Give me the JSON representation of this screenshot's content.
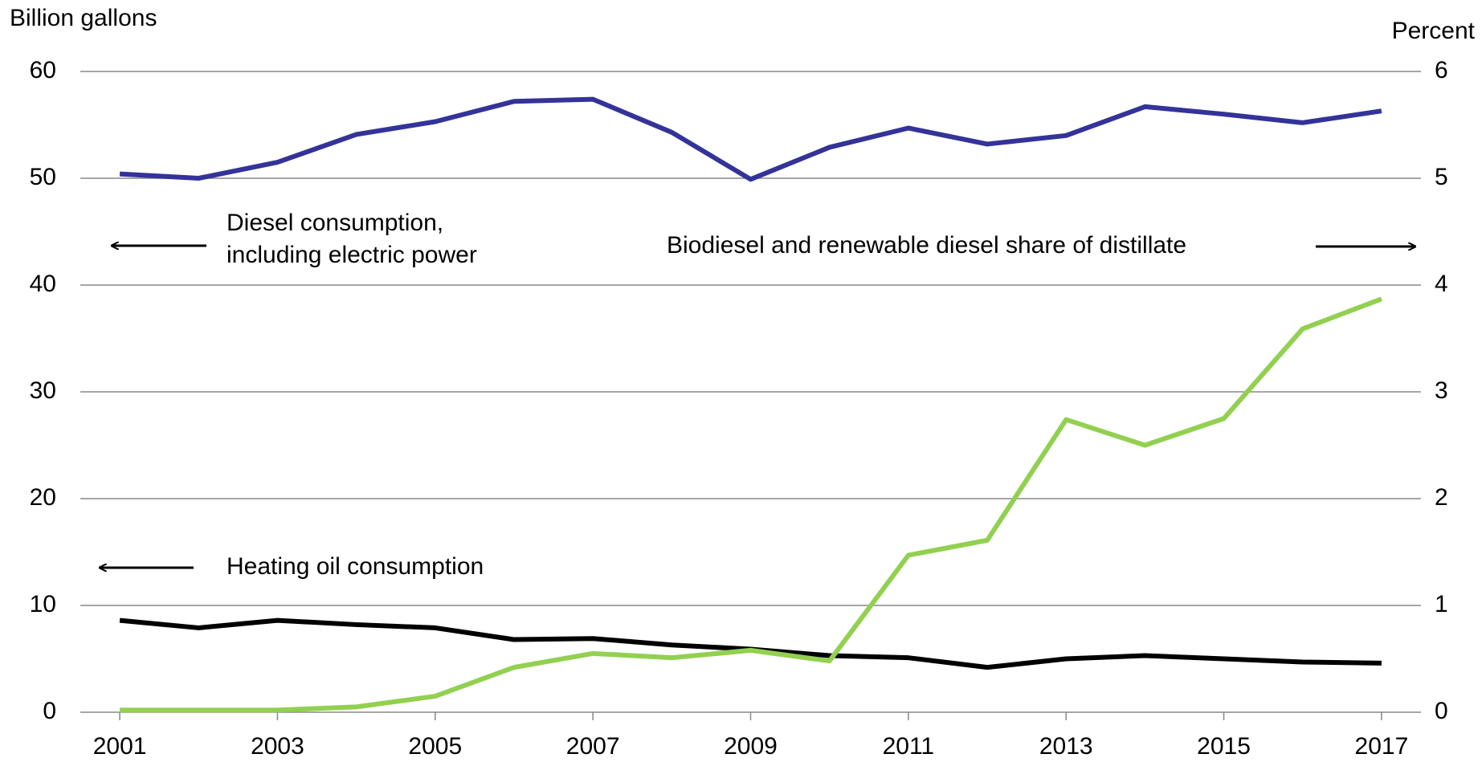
{
  "chart_data": {
    "type": "line",
    "y_label": "Billion gallons",
    "y2_label": "Percent",
    "x": [
      2001,
      2002,
      2003,
      2004,
      2005,
      2006,
      2007,
      2008,
      2009,
      2010,
      2011,
      2012,
      2013,
      2014,
      2015,
      2016,
      2017
    ],
    "xlim": [
      2000.5,
      2017.5
    ],
    "xticks": [
      2001,
      2003,
      2005,
      2007,
      2009,
      2011,
      2013,
      2015,
      2017
    ],
    "ylim": [
      0,
      60
    ],
    "yticks": [
      0,
      10,
      20,
      30,
      40,
      50,
      60
    ],
    "y2lim": [
      0,
      6
    ],
    "y2ticks": [
      0,
      1,
      2,
      3,
      4,
      5,
      6
    ],
    "grid": true,
    "series": [
      {
        "name": "Diesel consumption, including electric power",
        "color": "#333399",
        "values": [
          50.4,
          50.0,
          51.5,
          54.1,
          55.3,
          57.2,
          57.4,
          54.3,
          49.9,
          52.9,
          54.7,
          53.2,
          54.0,
          56.7,
          56.0,
          55.2,
          56.3
        ]
      },
      {
        "name": "Heating oil consumption",
        "color": "#000000",
        "values": [
          8.6,
          7.9,
          8.6,
          8.2,
          7.9,
          6.8,
          6.9,
          6.3,
          5.9,
          5.3,
          5.1,
          4.2,
          5.0,
          5.3,
          5.0,
          4.7,
          4.6
        ]
      },
      {
        "name": "Biodiesel and renewable diesel share of distillate",
        "color": "#92d050",
        "axis": "y2",
        "values": [
          0.02,
          0.02,
          0.02,
          0.05,
          0.15,
          0.42,
          0.55,
          0.51,
          0.58,
          0.48,
          1.47,
          1.61,
          2.74,
          2.5,
          2.75,
          3.59,
          3.87
        ]
      }
    ],
    "annotations": [
      {
        "lines": [
          "Diesel consumption,",
          "including electric power"
        ],
        "color": "#333399"
      },
      {
        "lines": [
          "Biodiesel and renewable diesel share of distillate"
        ],
        "color": "#92d050"
      },
      {
        "lines": [
          "Heating oil consumption"
        ],
        "color": "#000000"
      }
    ]
  }
}
